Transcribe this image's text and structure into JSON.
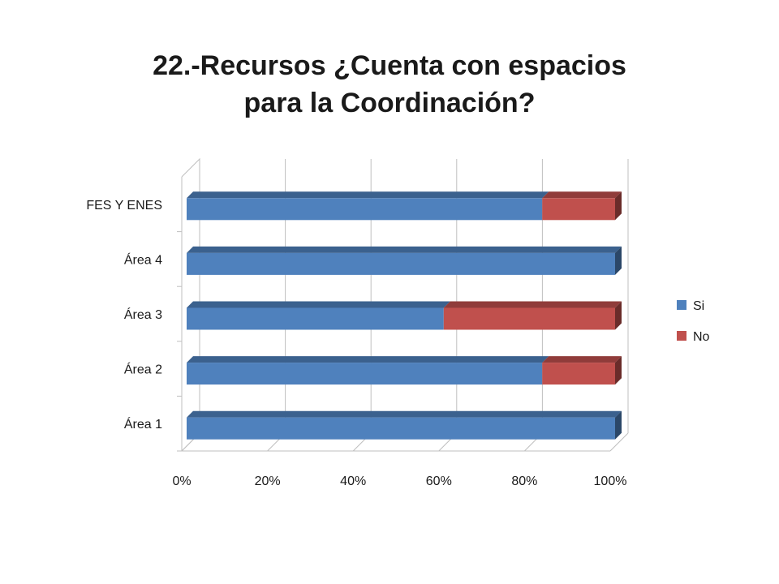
{
  "slide": {
    "title_line1": "22.-Recursos ¿Cuenta con espacios",
    "title_line2": "para la Coordinación?"
  },
  "chart_data": {
    "type": "bar",
    "orientation": "horizontal",
    "stacked": "percent",
    "categories": [
      "Área 1",
      "Área 2",
      "Área 3",
      "Área 4",
      "FES Y ENES"
    ],
    "series": [
      {
        "name": "Si",
        "values": [
          100,
          83,
          60,
          100,
          83
        ],
        "color": "#4F81BD"
      },
      {
        "name": "No",
        "values": [
          0,
          17,
          40,
          0,
          17
        ],
        "color": "#C0504D"
      }
    ],
    "xlim": [
      0,
      100
    ],
    "xticks": [
      "0%",
      "20%",
      "40%",
      "60%",
      "80%",
      "100%"
    ],
    "grid": true,
    "legend": "right",
    "style": "3d"
  }
}
